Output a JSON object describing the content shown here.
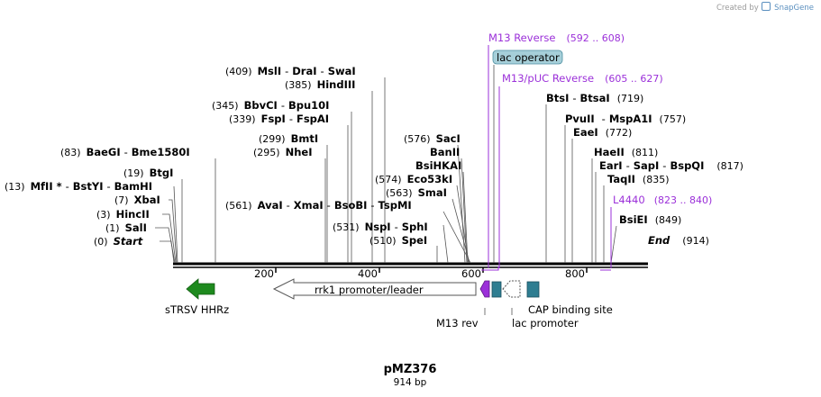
{
  "credit": {
    "prefix": "Created by",
    "brand": "SnapGene"
  },
  "plasmid": {
    "name": "pMZ376",
    "length_label": "914 bp"
  },
  "ruler": {
    "ticks": [
      "200",
      "400",
      "600",
      "800"
    ]
  },
  "sites_left": [
    {
      "pos": "(0)",
      "name": "Start"
    },
    {
      "pos": "(1)",
      "name": "SalI"
    },
    {
      "pos": "(3)",
      "name": "HincII"
    },
    {
      "pos": "(7)",
      "name": "XbaI"
    },
    {
      "pos": "(13)",
      "n1": "MfII *",
      "sep1": "-",
      "n2": "BstYI",
      "sep2": "-",
      "n3": "BamHI"
    },
    {
      "pos": "(19)",
      "name": "BtgI"
    },
    {
      "pos": "(83)",
      "n1": "BaeGI",
      "sep1": "-",
      "n2": "Bme1580I"
    }
  ],
  "sites_mid": [
    {
      "pos": "(409)",
      "n1": "MslI",
      "sep1": "-",
      "n2": "DraI",
      "sep2": "-",
      "n3": "SwaI"
    },
    {
      "pos": "(385)",
      "name": "HindIII"
    },
    {
      "pos": "(345)",
      "n1": "BbvCI",
      "sep1": "-",
      "n2": "Bpu10I"
    },
    {
      "pos": "(339)",
      "n1": "FspI",
      "sep1": "-",
      "n2": "FspAI"
    },
    {
      "pos": "(299)",
      "name": "BmtI"
    },
    {
      "pos": "(295)",
      "name": "NheI"
    },
    {
      "pos": "(561)",
      "n1": "AvaI",
      "sep1": "-",
      "n2": "XmaI",
      "sep2": "-",
      "n3": "BsoBI",
      "sep3": "-",
      "n4": "TspMI"
    },
    {
      "pos": "(531)",
      "n1": "NspI",
      "sep1": "-",
      "n2": "SphI"
    },
    {
      "pos": "(510)",
      "name": "SpeI"
    },
    {
      "pos": "(576)",
      "name": "SacI"
    },
    {
      "name": "BanII"
    },
    {
      "name": "BsiHKAI"
    },
    {
      "pos": "(574)",
      "name": "Eco53kI"
    },
    {
      "pos": "(563)",
      "name": "SmaI"
    }
  ],
  "sites_right": [
    {
      "name": "BtsI",
      "sep1": "-",
      "n2": "BtsaI",
      "pos": "(719)"
    },
    {
      "name": "PvuII",
      "sep1": "-",
      "n2": "MspA1I",
      "pos": "(757)"
    },
    {
      "name": "EaeI",
      "pos": "(772)"
    },
    {
      "name": "HaeII",
      "pos": "(811)"
    },
    {
      "name": "EarI",
      "sep1": "-",
      "n2": "SapI",
      "sep2": "-",
      "n3": "BspQI",
      "pos": "(817)"
    },
    {
      "name": "TaqII",
      "pos": "(835)"
    },
    {
      "name": "BsiEI",
      "pos": "(849)"
    },
    {
      "name": "End",
      "pos": "(914)"
    }
  ],
  "primers": [
    {
      "name": "M13 Reverse",
      "range": "(592 .. 608)"
    },
    {
      "name": "M13/pUC Reverse",
      "range": "(605 .. 627)"
    },
    {
      "name": "L4440",
      "range": "(823 .. 840)"
    }
  ],
  "features": {
    "lac_operator": "lac operator",
    "strsv": "sTRSV HHRz",
    "rrk1": "rrk1 promoter/leader",
    "m13_rev": "M13 rev",
    "lac_promoter": "lac promoter",
    "cap": "CAP binding site"
  },
  "colors": {
    "primer": "#9b30d9",
    "strsv": "#1e8a1e",
    "cap": "#2e7d91",
    "lacop": "#a6cfd9"
  }
}
